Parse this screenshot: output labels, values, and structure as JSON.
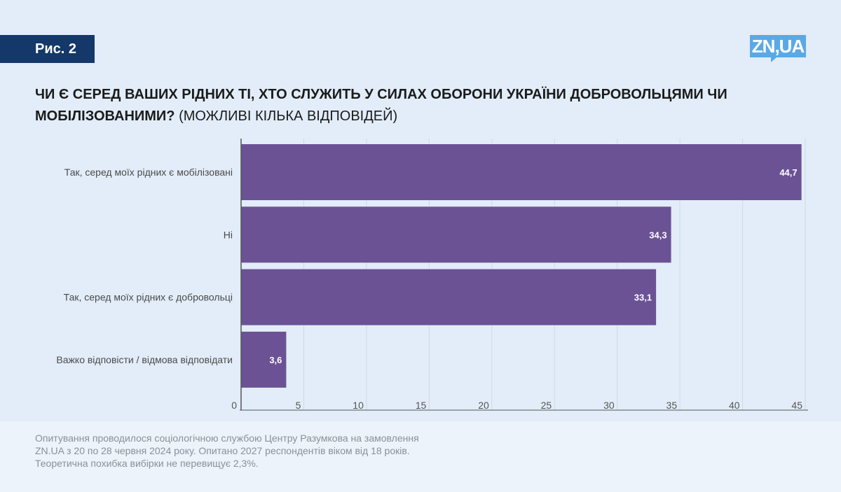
{
  "header": {
    "figure_label": "Рис. 2",
    "logo_text": "ZN,UA"
  },
  "title": {
    "bold_part": "ЧИ Є СЕРЕД ВАШИХ РІДНИХ ТІ, ХТО СЛУЖИТЬ У СИЛАХ ОБОРОНИ УКРАЇНИ ДОБРОВОЛЬЦЯМИ ЧИ МОБІЛІЗОВАНИМИ?",
    "normal_part": " (МОЖЛИВІ КІЛЬКА ВІДПОВІДЕЙ)"
  },
  "chart_data": {
    "type": "bar",
    "orientation": "horizontal",
    "categories": [
      "Так, серед моїх рідних є мобілізовані",
      "Ні",
      "Так, серед моїх рідних є добровольці",
      "Важко відповісти / відмова відповідати"
    ],
    "values": [
      44.7,
      34.3,
      33.1,
      3.6
    ],
    "value_labels": [
      "44,7",
      "34,3",
      "33,1",
      "3,6"
    ],
    "xlim": [
      0,
      45
    ],
    "x_ticks": [
      0,
      5,
      10,
      15,
      20,
      25,
      30,
      35,
      40,
      45
    ],
    "grid": true,
    "bar_color": "#6b5295",
    "grid_color": "#cfd9e6",
    "axis_color": "#555555"
  },
  "footer": {
    "lines": [
      "Опитування проводилося соціологічною службою Центру Разумкова на замовлення",
      "ZN.UA з 20 по 28 червня 2024 року. Опитано 2027 респондентів віком від 18 років.",
      "Теоретична похибка вибірки не перевищує 2,3%."
    ]
  }
}
